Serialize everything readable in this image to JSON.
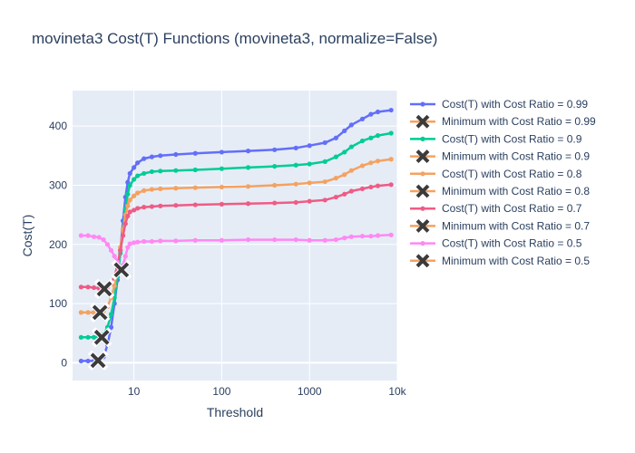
{
  "chart_data": {
    "type": "line",
    "title": "movineta3 Cost(T) Functions (movineta3, normalize=False)",
    "xlabel": "Threshold",
    "ylabel": "Cost(T)",
    "xscale": "log",
    "xlim": [
      2,
      10000
    ],
    "ylim": [
      -30,
      460
    ],
    "x_ticks": [
      10,
      100,
      1000,
      10000
    ],
    "x_tick_labels": [
      "10",
      "100",
      "1000",
      "10k"
    ],
    "y_ticks": [
      0,
      100,
      200,
      300,
      400
    ],
    "grid": true,
    "legend_position": "right",
    "plot_background": "#e5ecf6",
    "series": [
      {
        "name": "Cost(T) with Cost Ratio = 0.99",
        "kind": "line",
        "color": "#636efa",
        "points": [
          [
            2.5,
            3
          ],
          [
            3,
            3
          ],
          [
            3.5,
            3
          ],
          [
            4,
            3
          ],
          [
            4.5,
            10
          ],
          [
            5,
            30
          ],
          [
            5.5,
            60
          ],
          [
            6,
            100
          ],
          [
            6.5,
            140
          ],
          [
            7,
            190
          ],
          [
            7.5,
            240
          ],
          [
            8,
            280
          ],
          [
            8.5,
            305
          ],
          [
            9,
            320
          ],
          [
            10,
            330
          ],
          [
            11,
            338
          ],
          [
            13,
            345
          ],
          [
            16,
            348
          ],
          [
            20,
            350
          ],
          [
            30,
            352
          ],
          [
            50,
            354
          ],
          [
            100,
            356
          ],
          [
            200,
            358
          ],
          [
            400,
            360
          ],
          [
            700,
            363
          ],
          [
            1000,
            367
          ],
          [
            1500,
            372
          ],
          [
            2000,
            380
          ],
          [
            2500,
            392
          ],
          [
            3000,
            402
          ],
          [
            4000,
            412
          ],
          [
            5000,
            420
          ],
          [
            6000,
            424
          ],
          [
            8500,
            427
          ]
        ]
      },
      {
        "name": "Minimum with Cost Ratio = 0.99",
        "kind": "marker",
        "color": "#3b3b3b",
        "points": [
          [
            3.9,
            4
          ]
        ]
      },
      {
        "name": "Cost(T) with Cost Ratio = 0.9",
        "kind": "line",
        "color": "#00cc96",
        "points": [
          [
            2.5,
            43
          ],
          [
            3,
            43
          ],
          [
            3.5,
            43
          ],
          [
            4,
            44
          ],
          [
            4.5,
            48
          ],
          [
            5,
            60
          ],
          [
            5.5,
            82
          ],
          [
            6,
            110
          ],
          [
            6.5,
            145
          ],
          [
            7,
            185
          ],
          [
            7.5,
            225
          ],
          [
            8,
            260
          ],
          [
            8.5,
            285
          ],
          [
            9,
            300
          ],
          [
            10,
            310
          ],
          [
            11,
            316
          ],
          [
            13,
            320
          ],
          [
            16,
            323
          ],
          [
            20,
            324
          ],
          [
            30,
            325
          ],
          [
            50,
            326
          ],
          [
            100,
            328
          ],
          [
            200,
            330
          ],
          [
            400,
            332
          ],
          [
            700,
            334
          ],
          [
            1000,
            336
          ],
          [
            1500,
            340
          ],
          [
            2000,
            348
          ],
          [
            2500,
            356
          ],
          [
            3000,
            365
          ],
          [
            4000,
            375
          ],
          [
            5000,
            380
          ],
          [
            6000,
            384
          ],
          [
            8500,
            388
          ]
        ]
      },
      {
        "name": "Minimum with Cost Ratio = 0.9",
        "kind": "marker",
        "color": "#3b3b3b",
        "points": [
          [
            4.3,
            43
          ]
        ]
      },
      {
        "name": "Cost(T) with Cost Ratio = 0.8",
        "kind": "line",
        "color": "#f4a261",
        "points": [
          [
            2.5,
            85
          ],
          [
            3,
            85
          ],
          [
            3.5,
            85
          ],
          [
            4,
            85
          ],
          [
            4.5,
            87
          ],
          [
            5,
            95
          ],
          [
            5.5,
            110
          ],
          [
            6,
            130
          ],
          [
            6.5,
            160
          ],
          [
            7,
            195
          ],
          [
            7.5,
            225
          ],
          [
            8,
            250
          ],
          [
            8.5,
            265
          ],
          [
            9,
            275
          ],
          [
            10,
            282
          ],
          [
            11,
            287
          ],
          [
            13,
            291
          ],
          [
            16,
            293
          ],
          [
            20,
            294
          ],
          [
            30,
            295
          ],
          [
            50,
            296
          ],
          [
            100,
            297
          ],
          [
            200,
            298
          ],
          [
            400,
            300
          ],
          [
            700,
            302
          ],
          [
            1000,
            304
          ],
          [
            1500,
            306
          ],
          [
            2000,
            312
          ],
          [
            2500,
            318
          ],
          [
            3000,
            325
          ],
          [
            4000,
            333
          ],
          [
            5000,
            338
          ],
          [
            6000,
            341
          ],
          [
            8500,
            344
          ]
        ]
      },
      {
        "name": "Minimum with Cost Ratio = 0.8",
        "kind": "marker",
        "color": "#3b3b3b",
        "points": [
          [
            4.1,
            85
          ]
        ]
      },
      {
        "name": "Cost(T) with Cost Ratio = 0.7",
        "kind": "line",
        "color": "#ef5b85",
        "points": [
          [
            2.5,
            128
          ],
          [
            3,
            128
          ],
          [
            3.5,
            127
          ],
          [
            4,
            126
          ],
          [
            4.5,
            125
          ],
          [
            5,
            128
          ],
          [
            5.5,
            135
          ],
          [
            6,
            145
          ],
          [
            6.5,
            165
          ],
          [
            7,
            190
          ],
          [
            7.5,
            215
          ],
          [
            8,
            235
          ],
          [
            8.5,
            248
          ],
          [
            9,
            255
          ],
          [
            10,
            258
          ],
          [
            11,
            261
          ],
          [
            13,
            263
          ],
          [
            16,
            264
          ],
          [
            20,
            265
          ],
          [
            30,
            266
          ],
          [
            50,
            267
          ],
          [
            100,
            268
          ],
          [
            200,
            269
          ],
          [
            400,
            270
          ],
          [
            700,
            271
          ],
          [
            1000,
            273
          ],
          [
            1500,
            275
          ],
          [
            2000,
            280
          ],
          [
            2500,
            285
          ],
          [
            3000,
            290
          ],
          [
            4000,
            294
          ],
          [
            5000,
            297
          ],
          [
            6000,
            299
          ],
          [
            8500,
            301
          ]
        ]
      },
      {
        "name": "Minimum with Cost Ratio = 0.7",
        "kind": "marker",
        "color": "#3b3b3b",
        "points": [
          [
            4.6,
            125
          ]
        ]
      },
      {
        "name": "Cost(T) with Cost Ratio = 0.5",
        "kind": "line",
        "color": "#ff88f4",
        "points": [
          [
            2.5,
            215
          ],
          [
            3,
            215
          ],
          [
            3.5,
            213
          ],
          [
            4,
            212
          ],
          [
            4.5,
            208
          ],
          [
            5,
            200
          ],
          [
            5.5,
            190
          ],
          [
            6,
            180
          ],
          [
            6.5,
            170
          ],
          [
            7,
            160
          ],
          [
            7.5,
            165
          ],
          [
            8,
            180
          ],
          [
            8.5,
            195
          ],
          [
            9,
            201
          ],
          [
            10,
            203
          ],
          [
            11,
            204
          ],
          [
            13,
            205
          ],
          [
            16,
            205
          ],
          [
            20,
            206
          ],
          [
            30,
            206
          ],
          [
            50,
            207
          ],
          [
            100,
            207
          ],
          [
            200,
            208
          ],
          [
            400,
            208
          ],
          [
            700,
            208
          ],
          [
            1000,
            207
          ],
          [
            1500,
            207
          ],
          [
            2000,
            208
          ],
          [
            2500,
            211
          ],
          [
            3000,
            213
          ],
          [
            4000,
            214
          ],
          [
            5000,
            214
          ],
          [
            6000,
            215
          ],
          [
            8500,
            216
          ]
        ]
      },
      {
        "name": "Minimum with Cost Ratio = 0.5",
        "kind": "marker",
        "color": "#3b3b3b",
        "points": [
          [
            7.2,
            157
          ]
        ]
      }
    ]
  }
}
